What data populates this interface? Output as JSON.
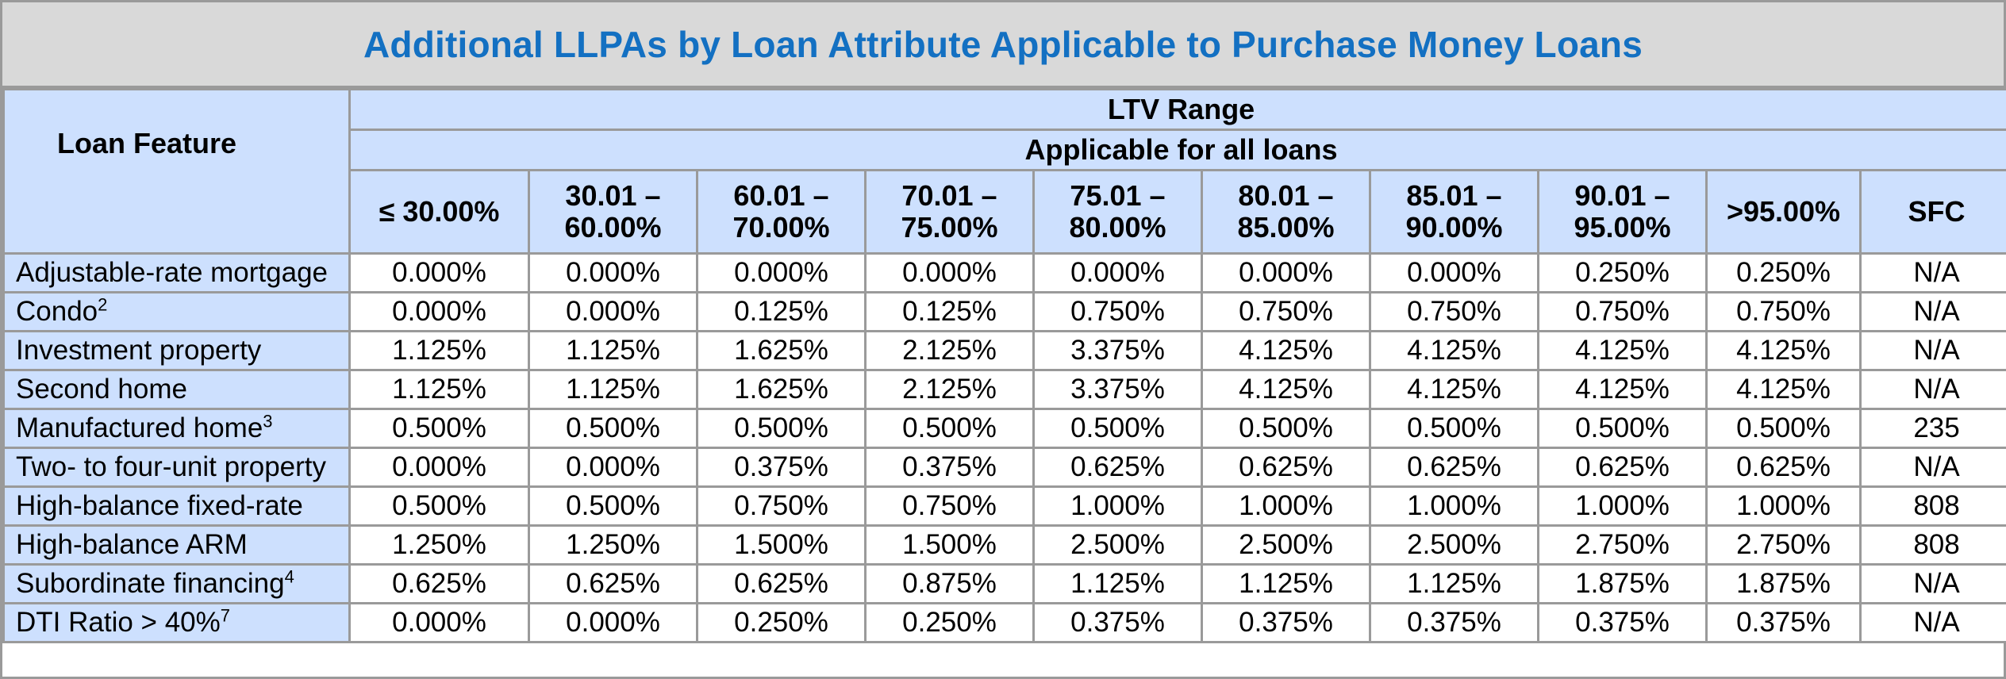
{
  "title": "Additional LLPAs by Loan Attribute Applicable to Purchase Money Loans",
  "header": {
    "feature_label": "Loan Feature",
    "ltv_range": "LTV Range",
    "applicable": "Applicable for all loans",
    "columns": [
      [
        "≤ 30.00%",
        ""
      ],
      [
        "30.01 –",
        "60.00%"
      ],
      [
        "60.01 –",
        "70.00%"
      ],
      [
        "70.01 –",
        "75.00%"
      ],
      [
        "75.01 –",
        "80.00%"
      ],
      [
        "80.01 –",
        "85.00%"
      ],
      [
        "85.01 –",
        "90.00%"
      ],
      [
        "90.01 –",
        "95.00%"
      ],
      [
        ">95.00%",
        ""
      ],
      [
        "SFC",
        ""
      ]
    ]
  },
  "rows": [
    {
      "feature": "Adjustable-rate mortgage",
      "note": "",
      "values": [
        "0.000%",
        "0.000%",
        "0.000%",
        "0.000%",
        "0.000%",
        "0.000%",
        "0.000%",
        "0.250%",
        "0.250%",
        "N/A"
      ]
    },
    {
      "feature": "Condo",
      "note": "2",
      "values": [
        "0.000%",
        "0.000%",
        "0.125%",
        "0.125%",
        "0.750%",
        "0.750%",
        "0.750%",
        "0.750%",
        "0.750%",
        "N/A"
      ]
    },
    {
      "feature": "Investment property",
      "note": "",
      "values": [
        "1.125%",
        "1.125%",
        "1.625%",
        "2.125%",
        "3.375%",
        "4.125%",
        "4.125%",
        "4.125%",
        "4.125%",
        "N/A"
      ]
    },
    {
      "feature": "Second home",
      "note": "",
      "values": [
        "1.125%",
        "1.125%",
        "1.625%",
        "2.125%",
        "3.375%",
        "4.125%",
        "4.125%",
        "4.125%",
        "4.125%",
        "N/A"
      ]
    },
    {
      "feature": "Manufactured home",
      "note": "3",
      "values": [
        "0.500%",
        "0.500%",
        "0.500%",
        "0.500%",
        "0.500%",
        "0.500%",
        "0.500%",
        "0.500%",
        "0.500%",
        "235"
      ]
    },
    {
      "feature": "Two- to four-unit property",
      "note": "",
      "values": [
        "0.000%",
        "0.000%",
        "0.375%",
        "0.375%",
        "0.625%",
        "0.625%",
        "0.625%",
        "0.625%",
        "0.625%",
        "N/A"
      ]
    },
    {
      "feature": "High-balance fixed-rate",
      "note": "",
      "values": [
        "0.500%",
        "0.500%",
        "0.750%",
        "0.750%",
        "1.000%",
        "1.000%",
        "1.000%",
        "1.000%",
        "1.000%",
        "808"
      ]
    },
    {
      "feature": "High-balance ARM",
      "note": "",
      "values": [
        "1.250%",
        "1.250%",
        "1.500%",
        "1.500%",
        "2.500%",
        "2.500%",
        "2.500%",
        "2.750%",
        "2.750%",
        "808"
      ]
    },
    {
      "feature": "Subordinate financing",
      "note": "4",
      "values": [
        "0.625%",
        "0.625%",
        "0.625%",
        "0.875%",
        "1.125%",
        "1.125%",
        "1.125%",
        "1.875%",
        "1.875%",
        "N/A"
      ]
    },
    {
      "feature": "DTI Ratio > 40%",
      "note": "7",
      "values": [
        "0.000%",
        "0.000%",
        "0.250%",
        "0.250%",
        "0.375%",
        "0.375%",
        "0.375%",
        "0.375%",
        "0.375%",
        "N/A"
      ]
    }
  ],
  "colors": {
    "title_text": "#1370c2",
    "title_bg": "#d9d9d9",
    "header_bg": "#cde0fe",
    "grid": "#9a9a9a"
  }
}
